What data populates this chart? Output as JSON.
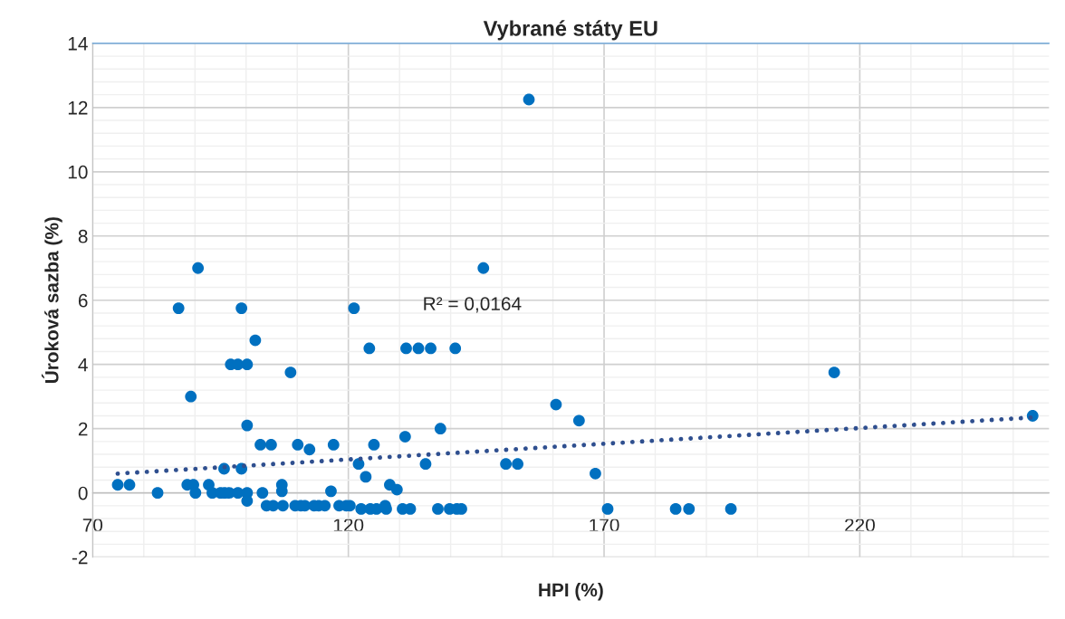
{
  "chart_data": {
    "type": "scatter",
    "title": "Vybrané státy EU",
    "xlabel": "HPI (%)",
    "ylabel": "Úroková sazba (%)",
    "xlim": [
      70,
      257
    ],
    "ylim": [
      -2,
      14
    ],
    "xticks": [
      70,
      120,
      170,
      220
    ],
    "yticks": [
      -2,
      0,
      2,
      4,
      6,
      8,
      10,
      12,
      14
    ],
    "grid": true,
    "legend": false,
    "marker": "circle",
    "annotations": [
      "R² = 0,0164"
    ],
    "series": [
      {
        "color": "#0070c0",
        "x": [
          74.9,
          77.2,
          82.7,
          86.8,
          88.5,
          89.2,
          89.7,
          90.1,
          90.6,
          92.7,
          93.4,
          95.0,
          95.7,
          95.8,
          96.7,
          97.0,
          98.4,
          98.4,
          99.1,
          99.1,
          100.2,
          100.2,
          100.2,
          100.2,
          101.8,
          102.8,
          103.2,
          104.0,
          104.9,
          105.3,
          107.0,
          107.0,
          107.2,
          108.7,
          109.6,
          110.1,
          110.7,
          111.5,
          112.4,
          113.3,
          114.2,
          115.4,
          116.6,
          117.1,
          118.2,
          119.6,
          120.3,
          121.1,
          122.0,
          122.5,
          123.4,
          124.1,
          124.3,
          125.0,
          125.5,
          127.2,
          127.4,
          128.1,
          129.5,
          130.6,
          131.1,
          131.3,
          132.1,
          133.7,
          135.1,
          136.1,
          137.5,
          138.0,
          139.8,
          140.9,
          141.2,
          142.1,
          146.4,
          150.8,
          153.1,
          155.3,
          160.6,
          165.1,
          168.3,
          170.7,
          184.0,
          186.6,
          194.8,
          215.0,
          253.8
        ],
        "values": [
          0.25,
          0.25,
          0,
          5.75,
          0.25,
          3.0,
          0.25,
          0,
          7.0,
          0.25,
          0,
          0,
          0.75,
          0,
          0,
          4.0,
          4.0,
          0,
          5.75,
          0.75,
          4.0,
          2.1,
          0,
          -0.25,
          4.75,
          1.5,
          0,
          -0.4,
          1.5,
          -0.4,
          0.05,
          0.25,
          -0.4,
          3.75,
          -0.4,
          1.5,
          -0.4,
          -0.4,
          1.35,
          -0.4,
          -0.4,
          -0.4,
          0.05,
          1.5,
          -0.4,
          -0.4,
          -0.4,
          5.75,
          0.9,
          -0.5,
          0.5,
          4.5,
          -0.5,
          1.5,
          -0.5,
          -0.4,
          -0.5,
          0.25,
          0.1,
          -0.5,
          1.75,
          4.5,
          -0.5,
          4.5,
          0.9,
          4.5,
          -0.5,
          2.0,
          -0.5,
          4.5,
          -0.5,
          -0.5,
          7.0,
          0.9,
          0.9,
          12.25,
          2.75,
          2.25,
          0.6,
          -0.5,
          -0.5,
          -0.5,
          -0.5,
          3.75,
          2.4
        ]
      },
      {
        "type": "line",
        "color": "#2f4f8f",
        "line_style": "dotted",
        "marker": "none",
        "x": [
          74.9,
          253.8
        ],
        "values": [
          0.6,
          2.35
        ]
      }
    ]
  }
}
